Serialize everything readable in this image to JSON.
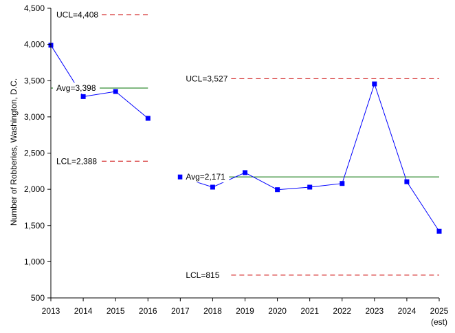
{
  "chart_data": {
    "type": "line",
    "title": "",
    "xlabel": "",
    "ylabel": "Number of Robberies, Washington, D.C.",
    "ylim": [
      500,
      4500
    ],
    "yticks": [
      500,
      1000,
      1500,
      2000,
      2500,
      3000,
      3500,
      4000,
      4500
    ],
    "ytick_labels": [
      "500",
      "1,000",
      "1,500",
      "2,000",
      "2,500",
      "3,000",
      "3,500",
      "4,000",
      "4,500"
    ],
    "categories": [
      "2013",
      "2014",
      "2015",
      "2016",
      "2017",
      "2018",
      "2019",
      "2020",
      "2021",
      "2022",
      "2023",
      "2024",
      "2025"
    ],
    "category_sublabel": {
      "index": 12,
      "text": "(est)"
    },
    "grid": false,
    "legend": "none",
    "series": [
      {
        "role": "data",
        "color": "#0000ff",
        "segments": [
          {
            "start_index": 0,
            "values": [
              3990,
              3280,
              3350,
              2980
            ]
          },
          {
            "start_index": 4,
            "values": [
              2170,
              2030,
              2230,
              1995,
              2030,
              2080,
              3455,
              2105,
              1420
            ]
          }
        ]
      }
    ],
    "control_limits": [
      {
        "start_index": 0,
        "end_index": 3,
        "ucl": 4408,
        "avg": 3398,
        "lcl": 2388,
        "ucl_label": "UCL=4,408",
        "avg_label": "Avg=3,398",
        "lcl_label": "LCL=2,388"
      },
      {
        "start_index": 4,
        "end_index": 12,
        "ucl": 3527,
        "avg": 2171,
        "lcl": 815,
        "ucl_label": "UCL=3,527",
        "avg_label": "Avg=2,171",
        "lcl_label": "LCL=815"
      }
    ],
    "colors": {
      "data": "#0000ff",
      "average": "#007000",
      "limits": "#cc0000",
      "axis": "#000000"
    }
  }
}
